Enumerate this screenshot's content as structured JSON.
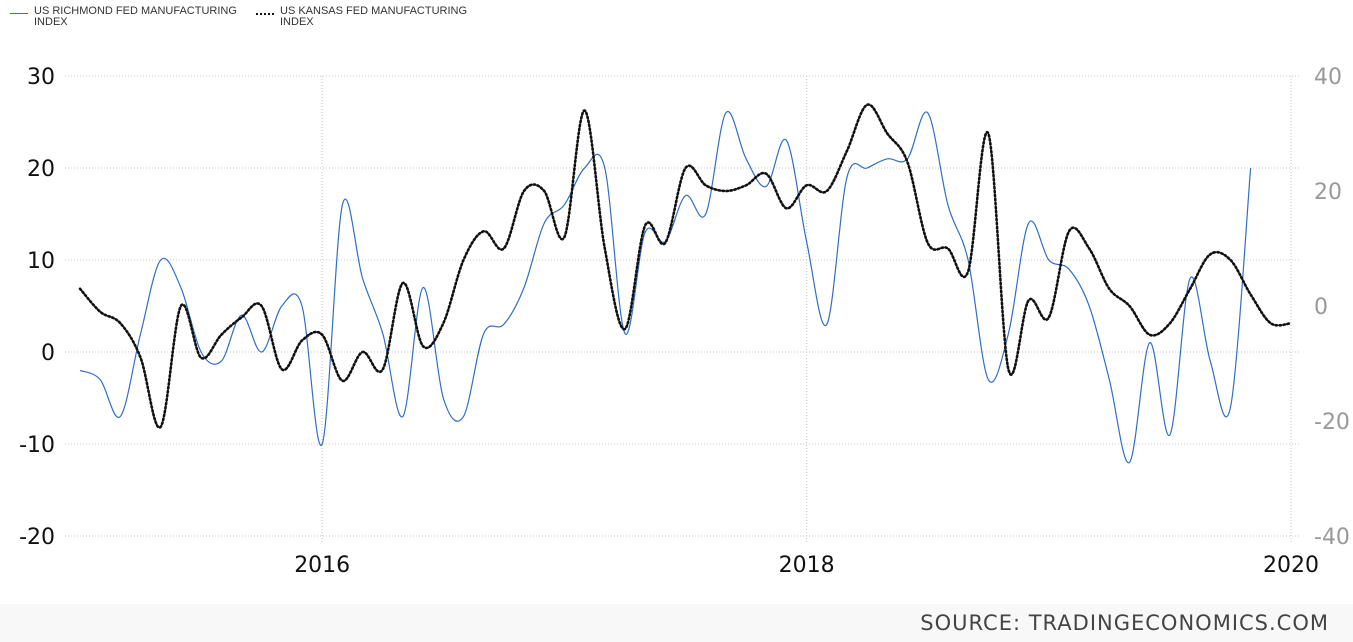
{
  "legend": {
    "series1_line1": "US RICHMOND FED MANUFACTURING",
    "series1_line2": "INDEX",
    "series2_line1": "US KANSAS FED MANUFACTURING",
    "series2_line2": "INDEX"
  },
  "source": "SOURCE: TRADINGECONOMICS.COM",
  "colors": {
    "richmond": "#2f6fc7",
    "kansas": "#111111",
    "grid": "#c8c8c8",
    "right_axis_text": "#999999"
  },
  "chart_data": {
    "type": "line",
    "x_ticks": [
      "2016",
      "2018",
      "2020"
    ],
    "y_left": {
      "ticks": [
        "30",
        "20",
        "10",
        "0",
        "-10",
        "-20"
      ],
      "ylim": [
        -20,
        30
      ]
    },
    "y_right": {
      "ticks": [
        "40",
        "20",
        "0",
        "-20",
        "-40"
      ],
      "ylim": [
        -40,
        40
      ]
    },
    "grid": true,
    "legend_position": "top-left",
    "series": [
      {
        "name": "US RICHMOND FED MANUFACTURING INDEX",
        "axis": "left",
        "style": "solid",
        "x": [
          "2015-01",
          "2015-02",
          "2015-03",
          "2015-04",
          "2015-05",
          "2015-06",
          "2015-07",
          "2015-08",
          "2015-09",
          "2015-10",
          "2015-11",
          "2015-12",
          "2016-01",
          "2016-02",
          "2016-03",
          "2016-04",
          "2016-05",
          "2016-06",
          "2016-07",
          "2016-08",
          "2016-09",
          "2016-10",
          "2016-11",
          "2016-12",
          "2017-01",
          "2017-02",
          "2017-03",
          "2017-04",
          "2017-05",
          "2017-06",
          "2017-07",
          "2017-08",
          "2017-09",
          "2017-10",
          "2017-11",
          "2017-12",
          "2018-01",
          "2018-02",
          "2018-03",
          "2018-04",
          "2018-05",
          "2018-06",
          "2018-07",
          "2018-08",
          "2018-09",
          "2018-10",
          "2018-11",
          "2018-12",
          "2019-01",
          "2019-02",
          "2019-03",
          "2019-04",
          "2019-05",
          "2019-06",
          "2019-07",
          "2019-08",
          "2019-09",
          "2019-10",
          "2019-11",
          "2019-12",
          "2020-01"
        ],
        "values": [
          -2,
          -3,
          -7,
          2,
          10,
          7,
          0,
          -1,
          4,
          0,
          5,
          5,
          -10,
          16,
          8,
          2,
          -7,
          7,
          -5,
          -7,
          2,
          3,
          7,
          14,
          16,
          20,
          20,
          2,
          13,
          12,
          17,
          15,
          26,
          21,
          18,
          23,
          12,
          3,
          19,
          20,
          21,
          21,
          26,
          16,
          10,
          -3,
          2,
          14,
          10,
          9,
          5,
          -3,
          -12,
          1,
          -9,
          8,
          -1,
          -6,
          20,
          null,
          null
        ],
        "x_end": "2020-01"
      },
      {
        "name": "US KANSAS FED MANUFACTURING INDEX",
        "axis": "right",
        "style": "dotted",
        "x": [
          "2015-01",
          "2015-02",
          "2015-03",
          "2015-04",
          "2015-05",
          "2015-06",
          "2015-07",
          "2015-08",
          "2015-09",
          "2015-10",
          "2015-11",
          "2015-12",
          "2016-01",
          "2016-02",
          "2016-03",
          "2016-04",
          "2016-05",
          "2016-06",
          "2016-07",
          "2016-08",
          "2016-09",
          "2016-10",
          "2016-11",
          "2016-12",
          "2017-01",
          "2017-02",
          "2017-03",
          "2017-04",
          "2017-05",
          "2017-06",
          "2017-07",
          "2017-08",
          "2017-09",
          "2017-10",
          "2017-11",
          "2017-12",
          "2018-01",
          "2018-02",
          "2018-03",
          "2018-04",
          "2018-05",
          "2018-06",
          "2018-07",
          "2018-08",
          "2018-09",
          "2018-10",
          "2018-11",
          "2018-12",
          "2019-01",
          "2019-02",
          "2019-03",
          "2019-04",
          "2019-05",
          "2019-06",
          "2019-07",
          "2019-08",
          "2019-09",
          "2019-10",
          "2019-11",
          "2019-12",
          "2020-01"
        ],
        "values": [
          3,
          -1,
          -3,
          -9,
          -21,
          0,
          -9,
          -5,
          -2,
          0,
          -11,
          -6,
          -5,
          -13,
          -8,
          -11,
          4,
          -7,
          -3,
          8,
          13,
          10,
          20,
          20,
          12,
          34,
          10,
          -4,
          14,
          11,
          24,
          21,
          20,
          21,
          23,
          17,
          21,
          20,
          27,
          35,
          30,
          25,
          11,
          10,
          6,
          30,
          -11,
          1,
          -2,
          13,
          10,
          3,
          0,
          -5,
          -3,
          3,
          9,
          8,
          2,
          -3,
          -3
        ],
        "x_end": "2020-01"
      }
    ]
  }
}
